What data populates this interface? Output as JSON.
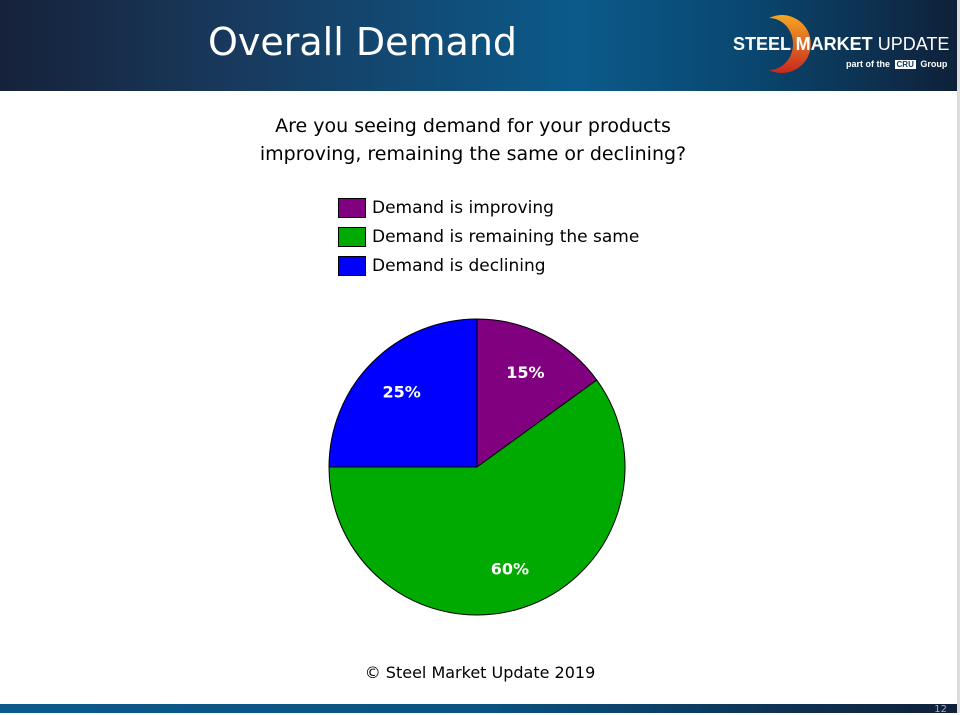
{
  "header": {
    "title": "Overall Demand",
    "logo": {
      "main_bold": "STEEL MARKET",
      "main_light": " UPDATE",
      "sub_prefix": "part of the",
      "sub_brand": "CRU",
      "sub_suffix": "Group"
    }
  },
  "chart_data": {
    "type": "pie",
    "title": "Are you seeing demand for your products improving, remaining the same or declining?",
    "title_lines": [
      "Are you seeing demand for your products",
      "improving, remaining the same or declining?"
    ],
    "legend_position": "top",
    "series": [
      {
        "name": "Demand is improving",
        "value": 15,
        "label": "15%",
        "color": "#800080"
      },
      {
        "name": "Demand is remaining the same",
        "value": 60,
        "label": "60%",
        "color": "#00aa00"
      },
      {
        "name": "Demand is declining",
        "value": 25,
        "label": "25%",
        "color": "#0000ff"
      }
    ]
  },
  "footer": {
    "copyright": "© Steel Market Update 2019",
    "page_number": "12"
  }
}
